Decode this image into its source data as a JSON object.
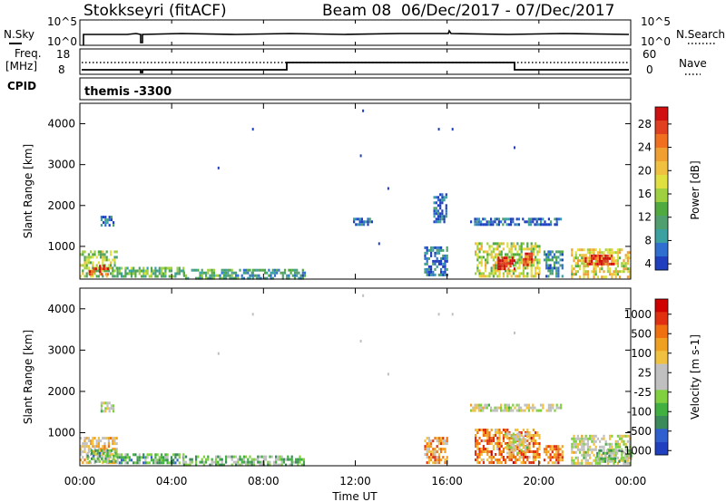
{
  "header": {
    "station": "Stokkseyri (fitACF)",
    "beam": "Beam 08",
    "date_range": "06/Dec/2017 - 07/Dec/2017"
  },
  "strip_labels": {
    "nsky": "N.Sky",
    "nsearch": "N.Search",
    "freq_top": "Freq.",
    "freq_unit": "[MHz]",
    "nave": "Nave",
    "cpid": "CPID",
    "cpid_value": "themis -3300"
  },
  "strip_ticks": {
    "nsky_left": [
      "10^5",
      "10^0"
    ],
    "nsky_right": [
      "10^5",
      "10^0"
    ],
    "freq_left": [
      "18",
      "8"
    ],
    "nave_right": [
      "60",
      "0"
    ]
  },
  "chart_data": [
    {
      "type": "heatmap",
      "name": "power",
      "ylabel": "Slant Range [km]",
      "yticks": [
        "4000",
        "3000",
        "2000",
        "1000"
      ],
      "ytick_values": [
        4000,
        3000,
        2000,
        1000
      ],
      "ylim": [
        200,
        4500
      ],
      "xlim": [
        0,
        24
      ],
      "colorbar": {
        "label": "Power [dB]",
        "ticks": [
          "28",
          "24",
          "20",
          "16",
          "12",
          "8",
          "4"
        ],
        "colors": [
          "#1f3fbf",
          "#2f6fcf",
          "#3aa0a0",
          "#4f9f6f",
          "#4faa40",
          "#9fd040",
          "#e0e040",
          "#f0c040",
          "#f0a030",
          "#f07020",
          "#e04020",
          "#d01010"
        ]
      },
      "patches": [
        {
          "t0": 0.0,
          "t1": 1.6,
          "r0": 300,
          "r1": 900,
          "level": 0.45
        },
        {
          "t0": 0.4,
          "t1": 1.2,
          "r0": 350,
          "r1": 550,
          "level": 0.9
        },
        {
          "t0": 1.6,
          "t1": 4.5,
          "r0": 250,
          "r1": 500,
          "level": 0.35
        },
        {
          "t0": 4.5,
          "t1": 7.5,
          "r0": 250,
          "r1": 450,
          "level": 0.3
        },
        {
          "t0": 7.5,
          "t1": 9.8,
          "r0": 250,
          "r1": 450,
          "level": 0.25
        },
        {
          "t0": 0.9,
          "t1": 1.5,
          "r0": 1550,
          "r1": 1750,
          "level": 0.15
        },
        {
          "t0": 11.9,
          "t1": 12.7,
          "r0": 1550,
          "r1": 1700,
          "level": 0.1
        },
        {
          "t0": 15.0,
          "t1": 16.0,
          "r0": 300,
          "r1": 1000,
          "level": 0.15
        },
        {
          "t0": 17.2,
          "t1": 20.0,
          "r0": 300,
          "r1": 1100,
          "level": 0.5
        },
        {
          "t0": 18.2,
          "t1": 18.9,
          "r0": 450,
          "r1": 750,
          "level": 0.95
        },
        {
          "t0": 19.3,
          "t1": 19.8,
          "r0": 550,
          "r1": 850,
          "level": 0.85
        },
        {
          "t0": 20.2,
          "t1": 21.0,
          "r0": 250,
          "r1": 900,
          "level": 0.2
        },
        {
          "t0": 21.4,
          "t1": 24.0,
          "r0": 250,
          "r1": 950,
          "level": 0.55
        },
        {
          "t0": 22.0,
          "t1": 23.3,
          "r0": 550,
          "r1": 800,
          "level": 0.9
        },
        {
          "t0": 17.0,
          "t1": 21.0,
          "r0": 1550,
          "r1": 1700,
          "level": 0.1
        },
        {
          "t0": 15.4,
          "t1": 16.0,
          "r0": 1600,
          "r1": 2300,
          "level": 0.1
        }
      ],
      "specks": [
        {
          "t": 7.5,
          "r": 3900
        },
        {
          "t": 6.0,
          "r": 2950
        },
        {
          "t": 12.3,
          "r": 4350
        },
        {
          "t": 12.2,
          "r": 3250
        },
        {
          "t": 13.4,
          "r": 2450
        },
        {
          "t": 15.6,
          "r": 3900
        },
        {
          "t": 16.2,
          "r": 3900
        },
        {
          "t": 18.9,
          "r": 3450
        },
        {
          "t": 13.0,
          "r": 1100
        }
      ]
    },
    {
      "type": "heatmap",
      "name": "velocity",
      "ylabel": "Slant Range [km]",
      "yticks": [
        "4000",
        "3000",
        "2000",
        "1000"
      ],
      "ytick_values": [
        4000,
        3000,
        2000,
        1000
      ],
      "ylim": [
        200,
        4500
      ],
      "xlim": [
        0,
        24
      ],
      "xlabel": "Time UT",
      "xticks": [
        "00:00",
        "04:00",
        "08:00",
        "12:00",
        "16:00",
        "20:00",
        "00:00"
      ],
      "xtick_values": [
        0,
        4,
        8,
        12,
        16,
        20,
        24
      ],
      "colorbar": {
        "label": "Velocity [m s-1]",
        "ticks": [
          "1000",
          "500",
          "100",
          "25",
          "-25",
          "-100",
          "-500",
          "-1000"
        ],
        "colors": [
          "#2040c0",
          "#3060d0",
          "#3a8a5a",
          "#40b040",
          "#80d040",
          "#c0c0c0",
          "#c0c0c0",
          "#f0c040",
          "#f0a020",
          "#f07010",
          "#e03010",
          "#d00000"
        ]
      },
      "patches": [
        {
          "t0": 0.0,
          "t1": 1.6,
          "r0": 300,
          "r1": 900,
          "level": 0.58
        },
        {
          "t0": 0.3,
          "t1": 1.6,
          "r0": 300,
          "r1": 600,
          "level": 0.3
        },
        {
          "t0": 1.6,
          "t1": 4.5,
          "r0": 250,
          "r1": 500,
          "level": 0.3
        },
        {
          "t0": 4.5,
          "t1": 9.8,
          "r0": 250,
          "r1": 450,
          "level": 0.35
        },
        {
          "t0": 0.9,
          "t1": 1.5,
          "r0": 1550,
          "r1": 1750,
          "level": 0.5
        },
        {
          "t0": 15.0,
          "t1": 16.0,
          "r0": 300,
          "r1": 900,
          "level": 0.7
        },
        {
          "t0": 17.2,
          "t1": 20.0,
          "r0": 300,
          "r1": 1100,
          "level": 0.75
        },
        {
          "t0": 18.5,
          "t1": 19.5,
          "r0": 500,
          "r1": 1000,
          "level": 0.5
        },
        {
          "t0": 20.2,
          "t1": 21.0,
          "r0": 250,
          "r1": 700,
          "level": 0.75
        },
        {
          "t0": 21.4,
          "t1": 24.0,
          "r0": 250,
          "r1": 950,
          "level": 0.5
        },
        {
          "t0": 22.5,
          "t1": 24.0,
          "r0": 300,
          "r1": 600,
          "level": 0.35
        },
        {
          "t0": 17.0,
          "t1": 21.0,
          "r0": 1550,
          "r1": 1700,
          "level": 0.5
        }
      ],
      "specks": [
        {
          "t": 7.5,
          "r": 3900
        },
        {
          "t": 6.0,
          "r": 2950
        },
        {
          "t": 12.3,
          "r": 4350
        },
        {
          "t": 12.2,
          "r": 3250
        },
        {
          "t": 13.4,
          "r": 2450
        },
        {
          "t": 15.6,
          "r": 3900
        },
        {
          "t": 16.2,
          "r": 3900
        },
        {
          "t": 18.9,
          "r": 3450
        }
      ]
    }
  ]
}
